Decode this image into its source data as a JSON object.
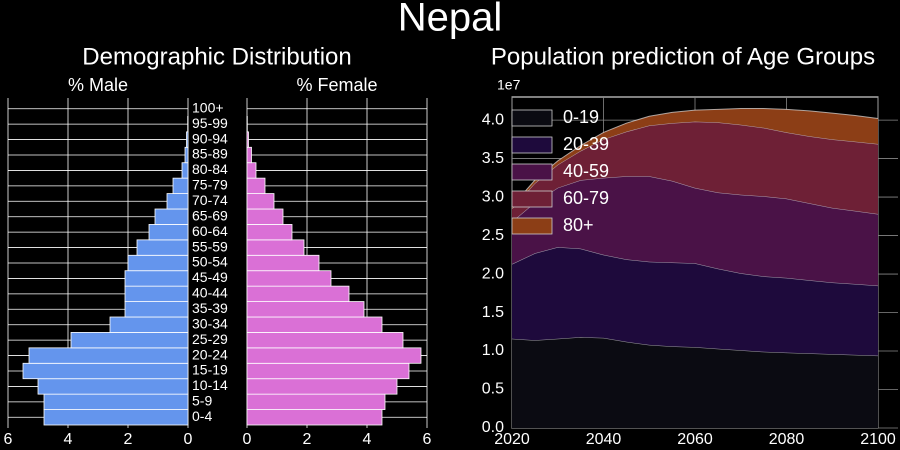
{
  "title": "Nepal",
  "chart_data": [
    {
      "type": "pyramid",
      "title": "Demographic Distribution",
      "categories": [
        "0-4",
        "5-9",
        "10-14",
        "15-19",
        "20-24",
        "25-29",
        "30-34",
        "35-39",
        "40-44",
        "45-49",
        "50-54",
        "55-59",
        "60-64",
        "65-69",
        "70-74",
        "75-79",
        "80-84",
        "85-89",
        "90-94",
        "95-99",
        "100+"
      ],
      "series": [
        {
          "name": "% Male",
          "color": "#6495ed",
          "values": [
            4.8,
            4.8,
            5.0,
            5.5,
            5.3,
            3.9,
            2.6,
            2.1,
            2.1,
            2.1,
            2.0,
            1.7,
            1.3,
            1.1,
            0.7,
            0.5,
            0.2,
            0.1,
            0.05,
            0.01,
            0.0
          ]
        },
        {
          "name": "% Female",
          "color": "#da70d6",
          "values": [
            4.5,
            4.6,
            5.0,
            5.4,
            5.8,
            5.2,
            4.5,
            3.9,
            3.4,
            2.8,
            2.4,
            1.9,
            1.5,
            1.2,
            0.9,
            0.6,
            0.3,
            0.15,
            0.05,
            0.01,
            0.0
          ]
        }
      ],
      "xlim": [
        0,
        6
      ],
      "xticks": [
        0,
        2,
        4,
        6
      ],
      "grid": true
    },
    {
      "type": "area",
      "title": "Population prediction of Age Groups",
      "x": [
        2020,
        2025,
        2030,
        2035,
        2040,
        2045,
        2050,
        2055,
        2060,
        2065,
        2070,
        2075,
        2080,
        2085,
        2090,
        2095,
        2100
      ],
      "series": [
        {
          "name": "0-19",
          "color": "#0b0b12",
          "values": [
            1.16,
            1.14,
            1.16,
            1.18,
            1.17,
            1.12,
            1.08,
            1.06,
            1.05,
            1.03,
            1.01,
            0.99,
            0.98,
            0.97,
            0.96,
            0.95,
            0.94
          ]
        },
        {
          "name": "20-39",
          "color": "#1e0a3c",
          "values": [
            0.97,
            1.13,
            1.19,
            1.15,
            1.08,
            1.07,
            1.08,
            1.09,
            1.09,
            1.04,
            1.0,
            0.98,
            0.97,
            0.95,
            0.93,
            0.92,
            0.91
          ]
        },
        {
          "name": "40-59",
          "color": "#4a1247",
          "values": [
            0.55,
            0.66,
            0.77,
            0.89,
            1.0,
            1.08,
            1.11,
            1.06,
            0.98,
            0.99,
            1.02,
            1.04,
            1.03,
            1.0,
            0.97,
            0.95,
            0.93
          ]
        },
        {
          "name": "60-79",
          "color": "#6e2036",
          "values": [
            0.17,
            0.25,
            0.3,
            0.38,
            0.5,
            0.58,
            0.66,
            0.75,
            0.86,
            0.91,
            0.91,
            0.89,
            0.86,
            0.87,
            0.89,
            0.9,
            0.91
          ]
        },
        {
          "name": "80+",
          "color": "#8c3e16",
          "values": [
            0.03,
            0.04,
            0.05,
            0.07,
            0.09,
            0.11,
            0.12,
            0.14,
            0.15,
            0.17,
            0.21,
            0.25,
            0.3,
            0.33,
            0.34,
            0.34,
            0.33
          ]
        }
      ],
      "xlim": [
        2020,
        2100
      ],
      "xticks": [
        2020,
        2040,
        2060,
        2080,
        2100
      ],
      "ylim": [
        0,
        4.3
      ],
      "yticks": [
        {
          "value": 0,
          "label": "0.0"
        },
        0.5,
        {
          "value": 1,
          "label": "1.0"
        },
        1.5,
        {
          "value": 2,
          "label": "2.0"
        },
        2.5,
        {
          "value": 3,
          "label": "3.0"
        },
        3.5,
        {
          "value": 4,
          "label": "4.0"
        }
      ],
      "y_offset_label": "1e7",
      "legend": "upper left",
      "grid": true
    }
  ]
}
